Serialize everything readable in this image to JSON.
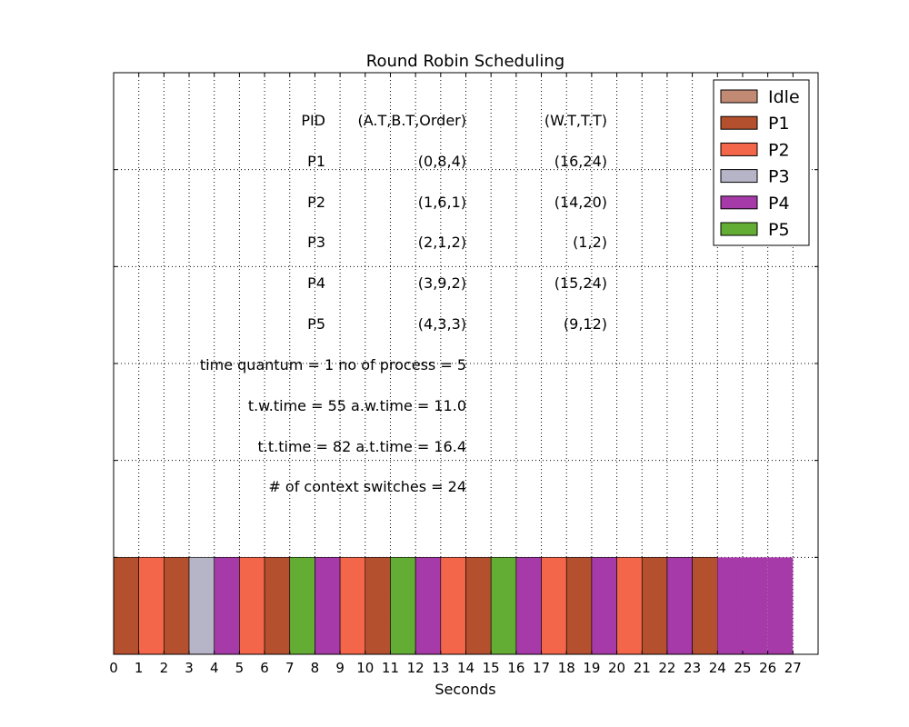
{
  "chart_data": {
    "type": "bar",
    "title": "Round Robin Scheduling",
    "xlabel": "Seconds",
    "ylabel": "",
    "xlim": [
      0,
      28
    ],
    "xticks": [
      "0",
      "1",
      "2",
      "3",
      "4",
      "5",
      "6",
      "7",
      "8",
      "9",
      "10",
      "11",
      "12",
      "13",
      "14",
      "15",
      "16",
      "17",
      "18",
      "19",
      "20",
      "21",
      "22",
      "23",
      "24",
      "25",
      "26",
      "27"
    ],
    "grid": true,
    "legend_position": "top-right",
    "legend": [
      {
        "label": "Idle",
        "color": "#c28a72"
      },
      {
        "label": "P1",
        "color": "#b5502f"
      },
      {
        "label": "P2",
        "color": "#f4664a"
      },
      {
        "label": "P3",
        "color": "#b6b4c7"
      },
      {
        "label": "P4",
        "color": "#a63aa8"
      },
      {
        "label": "P5",
        "color": "#63ad34"
      }
    ],
    "schedule": [
      {
        "start": 0,
        "end": 1,
        "process": "P1"
      },
      {
        "start": 1,
        "end": 2,
        "process": "P2"
      },
      {
        "start": 2,
        "end": 3,
        "process": "P1"
      },
      {
        "start": 3,
        "end": 4,
        "process": "P3"
      },
      {
        "start": 4,
        "end": 5,
        "process": "P4"
      },
      {
        "start": 5,
        "end": 6,
        "process": "P2"
      },
      {
        "start": 6,
        "end": 7,
        "process": "P1"
      },
      {
        "start": 7,
        "end": 8,
        "process": "P5"
      },
      {
        "start": 8,
        "end": 9,
        "process": "P4"
      },
      {
        "start": 9,
        "end": 10,
        "process": "P2"
      },
      {
        "start": 10,
        "end": 11,
        "process": "P1"
      },
      {
        "start": 11,
        "end": 12,
        "process": "P5"
      },
      {
        "start": 12,
        "end": 13,
        "process": "P4"
      },
      {
        "start": 13,
        "end": 14,
        "process": "P2"
      },
      {
        "start": 14,
        "end": 15,
        "process": "P1"
      },
      {
        "start": 15,
        "end": 16,
        "process": "P5"
      },
      {
        "start": 16,
        "end": 17,
        "process": "P4"
      },
      {
        "start": 17,
        "end": 18,
        "process": "P2"
      },
      {
        "start": 18,
        "end": 19,
        "process": "P1"
      },
      {
        "start": 19,
        "end": 20,
        "process": "P4"
      },
      {
        "start": 20,
        "end": 21,
        "process": "P2"
      },
      {
        "start": 21,
        "end": 22,
        "process": "P1"
      },
      {
        "start": 22,
        "end": 23,
        "process": "P4"
      },
      {
        "start": 23,
        "end": 24,
        "process": "P1"
      },
      {
        "start": 24,
        "end": 25,
        "process": "P4"
      },
      {
        "start": 25,
        "end": 26,
        "process": "P4"
      },
      {
        "start": 26,
        "end": 27,
        "process": "P4"
      }
    ],
    "table": {
      "header": {
        "pid": "PID",
        "params": "(A.T,B.T,Order)",
        "results": "(W.T,T.T)"
      },
      "rows": [
        {
          "pid": "P1",
          "params": "(0,8,4)",
          "results": "(16,24)"
        },
        {
          "pid": "P2",
          "params": "(1,6,1)",
          "results": "(14,20)"
        },
        {
          "pid": "P3",
          "params": "(2,1,2)",
          "results": "(1,2)"
        },
        {
          "pid": "P4",
          "params": "(3,9,2)",
          "results": "(15,24)"
        },
        {
          "pid": "P5",
          "params": "(4,3,3)",
          "results": "(9,12)"
        }
      ]
    },
    "annotations": [
      "time quantum = 1 no of process = 5",
      "t.w.time = 55 a.w.time = 11.0",
      "t.t.time = 82 a.t.time = 16.4",
      "# of context switches = 24"
    ]
  }
}
